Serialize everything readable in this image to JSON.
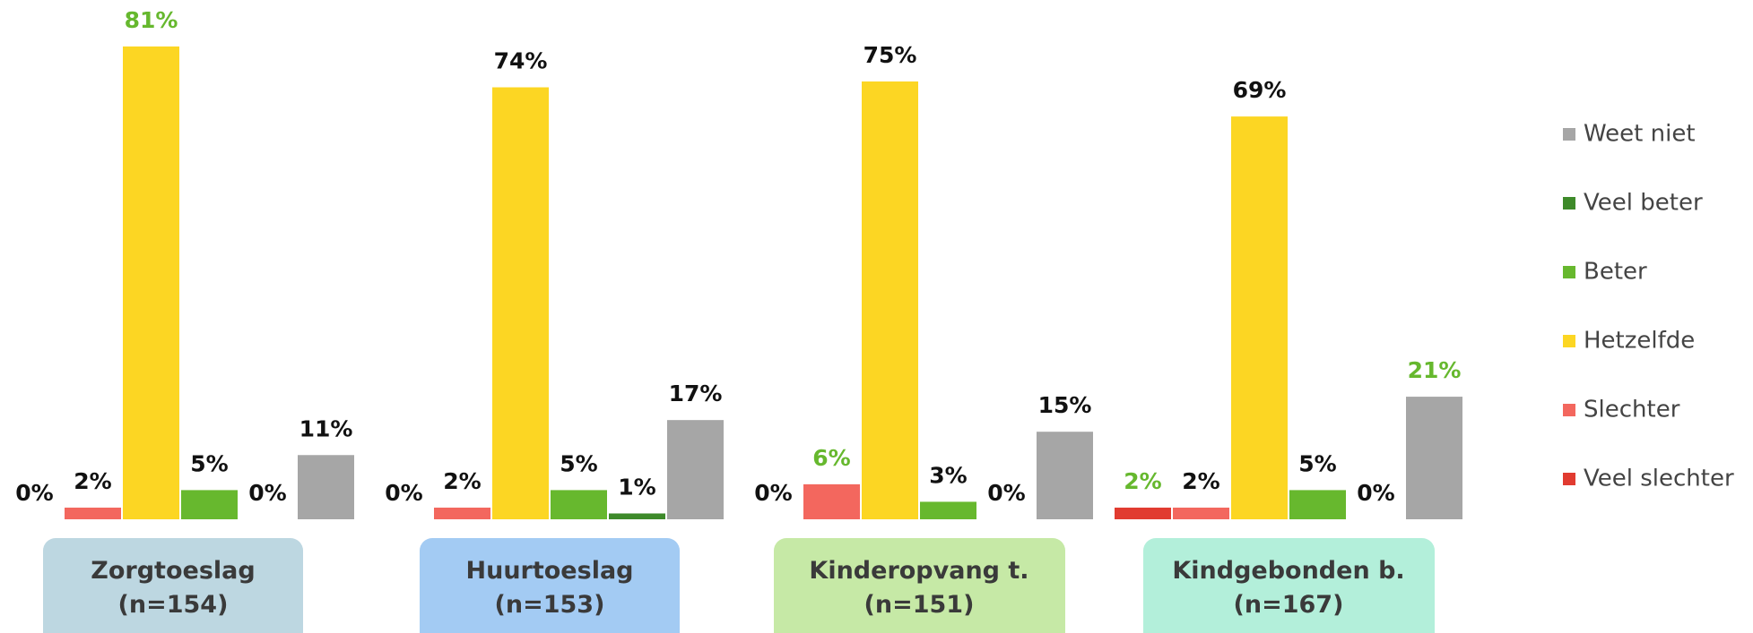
{
  "chart_data": {
    "type": "bar",
    "categories": [
      "Zorgtoeslag\n(n=154)",
      "Huurtoeslag\n(n=153)",
      "Kinderopvang t.\n(n=151)",
      "Kindgebonden b.\n(n=167)"
    ],
    "category_colors": [
      "#bdd7e1",
      "#a3cbf3",
      "#c6e9a6",
      "#b3efda"
    ],
    "series": [
      {
        "name": "Veel slechter",
        "color": "#e13b30",
        "values": [
          0,
          0,
          0,
          2
        ],
        "value_labels": [
          "0%",
          "0%",
          "0%",
          "2%"
        ],
        "label_colors": [
          "#111111",
          "#111111",
          "#111111",
          "#66b82e"
        ]
      },
      {
        "name": "Slechter",
        "color": "#f3675e",
        "values": [
          2,
          2,
          6,
          2
        ],
        "value_labels": [
          "2%",
          "2%",
          "6%",
          "2%"
        ],
        "label_colors": [
          "#111111",
          "#111111",
          "#66b82e",
          "#111111"
        ]
      },
      {
        "name": "Hetzelfde",
        "color": "#fcd623",
        "values": [
          81,
          74,
          75,
          69
        ],
        "value_labels": [
          "81%",
          "74%",
          "75%",
          "69%"
        ],
        "label_colors": [
          "#66b82e",
          "#111111",
          "#111111",
          "#111111"
        ]
      },
      {
        "name": "Beter",
        "color": "#67b82e",
        "values": [
          5,
          5,
          3,
          5
        ],
        "value_labels": [
          "5%",
          "5%",
          "3%",
          "5%"
        ],
        "label_colors": [
          "#111111",
          "#111111",
          "#111111",
          "#111111"
        ]
      },
      {
        "name": "Veel beter",
        "color": "#3e8a2a",
        "values": [
          0,
          1,
          0,
          0
        ],
        "value_labels": [
          "0%",
          "1%",
          "0%",
          "0%"
        ],
        "label_colors": [
          "#111111",
          "#111111",
          "#111111",
          "#111111"
        ]
      },
      {
        "name": "Weet niet",
        "color": "#a6a6a6",
        "values": [
          11,
          17,
          15,
          21
        ],
        "value_labels": [
          "11%",
          "17%",
          "15%",
          "21%"
        ],
        "label_colors": [
          "#111111",
          "#111111",
          "#111111",
          "#66b82e"
        ]
      }
    ],
    "legend": "right"
  }
}
